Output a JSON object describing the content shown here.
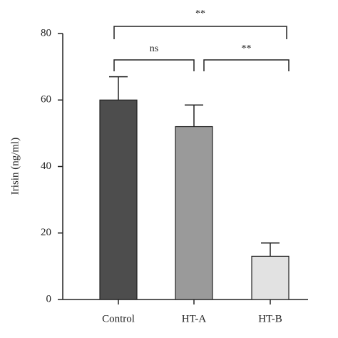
{
  "chart_data": {
    "type": "bar",
    "y_label": "Irisin (ng/ml)",
    "categories": [
      "Control",
      "HT-A",
      "HT-B"
    ],
    "values": [
      60,
      52,
      13
    ],
    "errors": [
      7,
      6.5,
      4
    ],
    "colors": [
      "#4d4d4d",
      "#9a9a9a",
      "#e2e2e2"
    ],
    "ylim": [
      0,
      80
    ],
    "yticks": [
      0,
      20,
      40,
      60,
      80
    ],
    "grid": false,
    "annotations": [
      {
        "label": "**",
        "categories": [
          "Control",
          "HT-B"
        ]
      },
      {
        "label": "ns",
        "categories": [
          "Control",
          "HT-A"
        ]
      },
      {
        "label": "**",
        "categories": [
          "HT-A",
          "HT-B"
        ]
      }
    ]
  }
}
